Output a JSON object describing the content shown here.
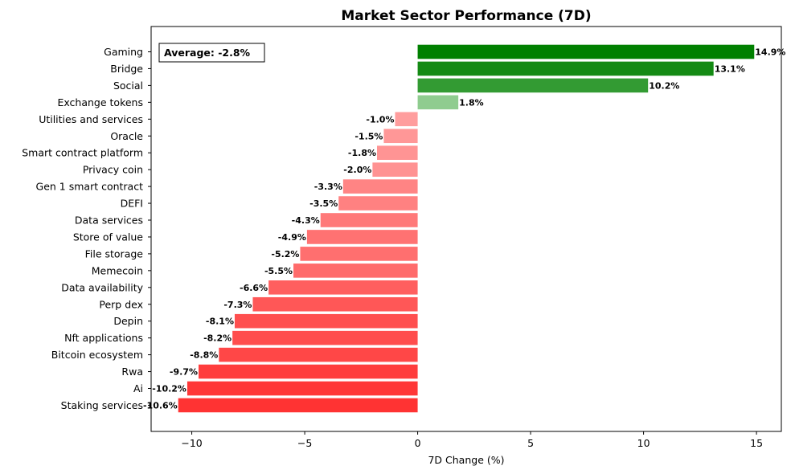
{
  "chart_data": {
    "type": "bar",
    "orientation": "horizontal",
    "title": "Market Sector Performance (7D)",
    "xlabel": "7D Change (%)",
    "ylabel": "",
    "xlim": [
      -11.8,
      16.1
    ],
    "xticks": [
      -10,
      -5,
      0,
      5,
      10,
      15
    ],
    "xtick_labels": [
      "−10",
      "−5",
      "0",
      "5",
      "10",
      "15"
    ],
    "grid": false,
    "annotation": "Average: -2.8%",
    "annotation_position": "top-left",
    "categories": [
      "Gaming",
      "Bridge",
      "Social",
      "Exchange tokens",
      "Utilities and services",
      "Oracle",
      "Smart contract platform",
      "Privacy coin",
      "Gen 1 smart contract",
      "DEFI",
      "Data services",
      "Store of value",
      "File storage",
      "Memecoin",
      "Data availability",
      "Perp dex",
      "Depin",
      "Nft applications",
      "Bitcoin ecosystem",
      "Rwa",
      "Ai",
      "Staking services"
    ],
    "values": [
      14.9,
      13.1,
      10.2,
      1.8,
      -1.0,
      -1.5,
      -1.8,
      -2.0,
      -3.3,
      -3.5,
      -4.3,
      -4.9,
      -5.2,
      -5.5,
      -6.6,
      -7.3,
      -8.1,
      -8.2,
      -8.8,
      -9.7,
      -10.2,
      -10.6
    ],
    "value_labels": [
      "14.9%",
      "13.1%",
      "10.2%",
      "1.8%",
      "-1.0%",
      "-1.5%",
      "-1.8%",
      "-2.0%",
      "-3.3%",
      "-3.5%",
      "-4.3%",
      "-4.9%",
      "-5.2%",
      "-5.5%",
      "-6.6%",
      "-7.3%",
      "-8.1%",
      "-8.2%",
      "-8.8%",
      "-9.7%",
      "-10.2%",
      "-10.6%"
    ],
    "colors": {
      "positive_strong": "#008000",
      "positive_light": "#a3d6a3",
      "negative_light": "#ffa8a8",
      "negative_strong": "#ff3333"
    }
  }
}
